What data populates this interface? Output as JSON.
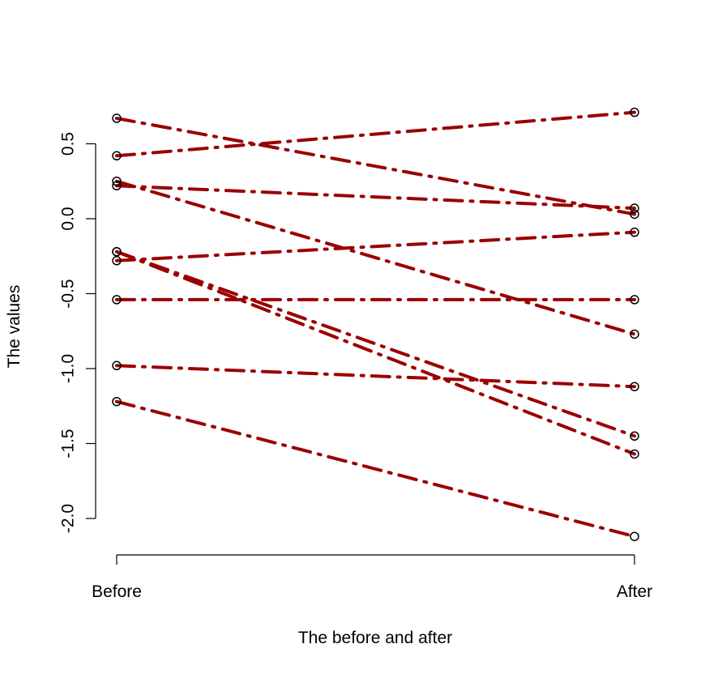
{
  "chart_data": {
    "type": "line",
    "title": "",
    "xlabel": "The before and after",
    "ylabel": "The values",
    "categories": [
      "Before",
      "After"
    ],
    "ylim": [
      -2.1,
      0.6
    ],
    "yticks": [
      -2.0,
      -1.5,
      -1.0,
      -0.5,
      0.0,
      0.5
    ],
    "ytick_labels": [
      "-2.0",
      "-1.5",
      "-1.0",
      "-0.5",
      "0.0",
      "0.5"
    ],
    "grid": false,
    "legend": "none",
    "line_color": "#9b0000",
    "line_style": "dash-dot",
    "marker": "open-circle",
    "series": [
      {
        "values": [
          0.67,
          0.03
        ]
      },
      {
        "values": [
          0.42,
          0.71
        ]
      },
      {
        "values": [
          0.25,
          -0.77
        ]
      },
      {
        "values": [
          0.22,
          0.07
        ]
      },
      {
        "values": [
          -0.22,
          -1.57
        ]
      },
      {
        "values": [
          -0.22,
          -1.45
        ]
      },
      {
        "values": [
          -0.28,
          -0.09
        ]
      },
      {
        "values": [
          -0.54,
          -0.54
        ]
      },
      {
        "values": [
          -0.98,
          -1.12
        ]
      },
      {
        "values": [
          -1.22,
          -2.12
        ]
      }
    ]
  }
}
